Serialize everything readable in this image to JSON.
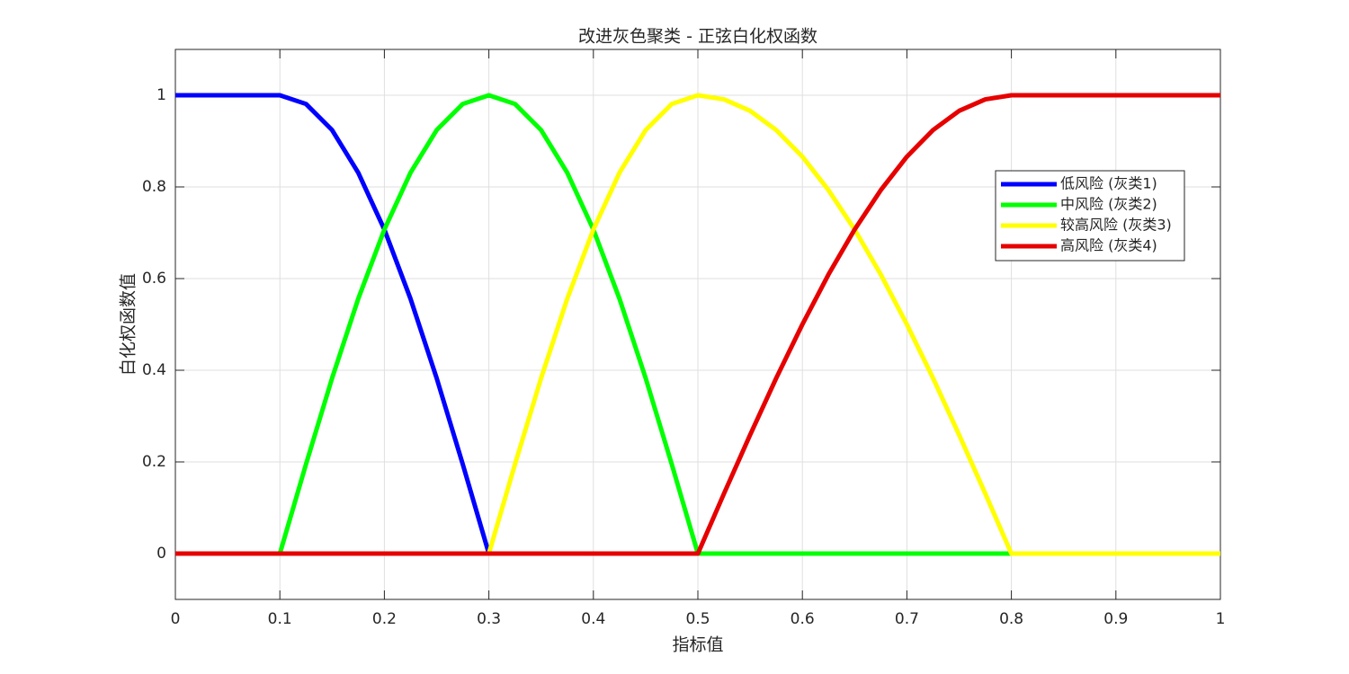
{
  "chart_data": {
    "type": "line",
    "title": "改进灰色聚类 - 正弦白化权函数",
    "x_label": "指标值",
    "y_label": "白化权函数值",
    "x": [
      0,
      0.025,
      0.05,
      0.075,
      0.1,
      0.125,
      0.15,
      0.175,
      0.2,
      0.225,
      0.25,
      0.275,
      0.3,
      0.325,
      0.35,
      0.375,
      0.4,
      0.425,
      0.45,
      0.475,
      0.5,
      0.525,
      0.55,
      0.575,
      0.6,
      0.625,
      0.65,
      0.675,
      0.7,
      0.725,
      0.75,
      0.775,
      0.8,
      0.825,
      0.85,
      0.875,
      0.9,
      0.925,
      0.95,
      0.975,
      1
    ],
    "series": [
      {
        "name": "低风险 (灰类1)",
        "color": "#0000ff",
        "values": [
          1,
          1,
          1,
          1,
          1,
          0.981,
          0.924,
          0.831,
          0.707,
          0.556,
          0.383,
          0.195,
          0,
          0,
          0,
          0,
          0,
          0,
          0,
          0,
          0,
          0,
          0,
          0,
          0,
          0,
          0,
          0,
          0,
          0,
          0,
          0,
          0,
          0,
          0,
          0,
          0,
          0,
          0,
          0,
          0
        ]
      },
      {
        "name": "中风险 (灰类2)",
        "color": "#00ff00",
        "values": [
          0,
          0,
          0,
          0,
          0,
          0.195,
          0.383,
          0.556,
          0.707,
          0.831,
          0.924,
          0.981,
          1,
          0.981,
          0.924,
          0.831,
          0.707,
          0.556,
          0.383,
          0.195,
          0,
          0,
          0,
          0,
          0,
          0,
          0,
          0,
          0,
          0,
          0,
          0,
          0,
          0,
          0,
          0,
          0,
          0,
          0,
          0,
          0
        ]
      },
      {
        "name": "较高风险 (灰类3)",
        "color": "#ffff00",
        "values": [
          0,
          0,
          0,
          0,
          0,
          0,
          0,
          0,
          0,
          0,
          0,
          0,
          0,
          0.195,
          0.383,
          0.556,
          0.707,
          0.831,
          0.924,
          0.981,
          1,
          0.991,
          0.966,
          0.924,
          0.866,
          0.793,
          0.707,
          0.609,
          0.5,
          0.383,
          0.259,
          0.131,
          0,
          0,
          0,
          0,
          0,
          0,
          0,
          0,
          0
        ]
      },
      {
        "name": "高风险 (灰类4)",
        "color": "#e60000",
        "values": [
          0,
          0,
          0,
          0,
          0,
          0,
          0,
          0,
          0,
          0,
          0,
          0,
          0,
          0,
          0,
          0,
          0,
          0,
          0,
          0,
          0,
          0.131,
          0.259,
          0.383,
          0.5,
          0.609,
          0.707,
          0.793,
          0.866,
          0.924,
          0.966,
          0.991,
          1,
          1,
          1,
          1,
          1,
          1,
          1,
          1,
          1
        ]
      }
    ],
    "xlim": [
      0,
      1
    ],
    "xticks": [
      0,
      0.1,
      0.2,
      0.3,
      0.4,
      0.5,
      0.6,
      0.7,
      0.8,
      0.9,
      1
    ],
    "ylim": [
      -0.1,
      1.1
    ],
    "yticks": [
      0,
      0.2,
      0.4,
      0.6,
      0.8,
      1
    ],
    "grid": true,
    "legend": "right"
  }
}
